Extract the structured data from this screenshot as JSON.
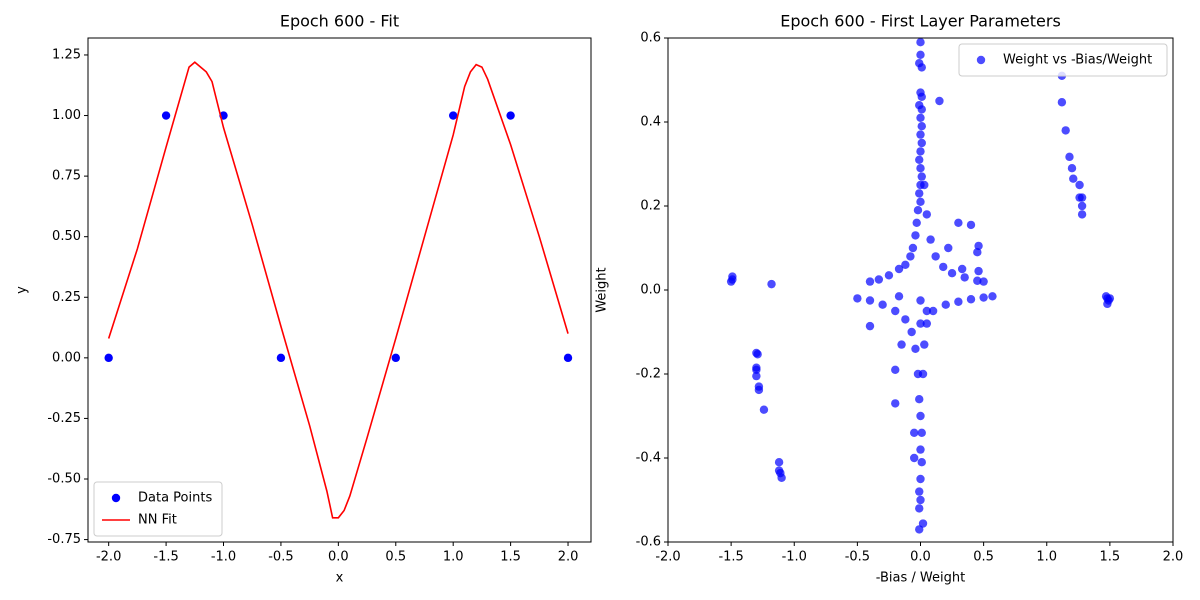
{
  "chart_data": [
    {
      "type": "line",
      "title": "Epoch 600 - Fit",
      "x_label": "x",
      "y_label": "y",
      "xlim": [
        -2.18,
        2.2
      ],
      "ylim": [
        -0.76,
        1.32
      ],
      "xticks": [
        {
          "value": -2,
          "label": "-2.0"
        },
        {
          "value": -1.5,
          "label": "-1.5"
        },
        {
          "value": -1,
          "label": "-1.0"
        },
        {
          "value": -0.5,
          "label": "-0.5"
        },
        {
          "value": 0,
          "label": "0.0"
        },
        0.5,
        {
          "value": 1,
          "label": "1.0"
        },
        1.5,
        {
          "value": 2,
          "label": "2.0"
        }
      ],
      "yticks": [
        -0.75,
        {
          "value": -0.5,
          "label": "-0.50"
        },
        -0.25,
        {
          "value": 0,
          "label": "0.00"
        },
        0.25,
        {
          "value": 0.5,
          "label": "0.50"
        },
        0.75,
        {
          "value": 1,
          "label": "1.00"
        },
        1.25
      ],
      "legend": "lower left",
      "series": [
        {
          "name": "Data Points",
          "style": "points",
          "color": "#0000ff",
          "x": [
            -2,
            -1.5,
            -1,
            -0.5,
            0.5,
            1,
            1.5,
            2
          ],
          "values": [
            0,
            1,
            1,
            0,
            0,
            1,
            1,
            0
          ]
        },
        {
          "name": "NN Fit",
          "style": "line",
          "color": "#ff0000",
          "x": [
            -2,
            -1.75,
            -1.5,
            -1.3,
            -1.25,
            -1.15,
            -1.1,
            -1,
            -0.75,
            -0.5,
            -0.25,
            -0.1,
            -0.05,
            0,
            0.05,
            0.1,
            0.25,
            0.5,
            0.75,
            1,
            1.1,
            1.15,
            1.2,
            1.25,
            1.3,
            1.5,
            1.75,
            2
          ],
          "values": [
            0.08,
            0.45,
            0.87,
            1.2,
            1.22,
            1.18,
            1.14,
            0.95,
            0.55,
            0.13,
            -0.28,
            -0.55,
            -0.66,
            -0.66,
            -0.63,
            -0.57,
            -0.33,
            0.08,
            0.5,
            0.92,
            1.12,
            1.18,
            1.21,
            1.2,
            1.15,
            0.88,
            0.5,
            0.1
          ]
        }
      ]
    },
    {
      "type": "scatter",
      "title": "Epoch 600 - First Layer Parameters",
      "x_label": "-Bias / Weight",
      "y_label": "Weight",
      "xlim": [
        -2,
        2
      ],
      "ylim": [
        -0.6,
        0.6
      ],
      "xticks": [
        {
          "value": -2,
          "label": "-2.0"
        },
        {
          "value": -1.5,
          "label": "-1.5"
        },
        {
          "value": -1,
          "label": "-1.0"
        },
        {
          "value": -0.5,
          "label": "-0.5"
        },
        {
          "value": 0,
          "label": "0.0"
        },
        0.5,
        {
          "value": 1,
          "label": "1.0"
        },
        1.5,
        {
          "value": 2,
          "label": "2.0"
        }
      ],
      "yticks": [
        -0.6,
        -0.4,
        -0.2,
        {
          "value": 0,
          "label": "0.0"
        },
        0.2,
        0.4,
        0.6
      ],
      "legend": "upper right",
      "series": [
        {
          "name": "Weight vs -Bias/Weight",
          "style": "points",
          "color": "#0000ff",
          "alpha": 0.7,
          "x": [
            0,
            0,
            -0.01,
            0.01,
            0,
            0.01,
            -0.01,
            0.01,
            0,
            0.01,
            0,
            0.01,
            0,
            -0.01,
            0,
            0.01,
            0,
            -0.01,
            0,
            -0.02,
            -0.03,
            -0.04,
            -0.06,
            -0.08,
            -0.12,
            -0.17,
            -0.25,
            -0.33,
            -0.4,
            0.03,
            0.05,
            0.08,
            0.12,
            0.18,
            0.25,
            0.35,
            0.45,
            0.5,
            0.15,
            0.3,
            0.4,
            0.22,
            0.46,
            0.45,
            0.33,
            0.46,
            -0.5,
            -0.4,
            -0.3,
            -0.2,
            -0.12,
            -0.07,
            -0.04,
            -0.02,
            -0.01,
            0,
            0.01,
            0,
            0.01,
            0,
            -0.01,
            0,
            -0.01,
            -0.01,
            0.02,
            -0.2,
            -0.2,
            -0.4,
            -0.15,
            -0.05,
            -0.05,
            0.02,
            0.03,
            0.05,
            0.1,
            0.2,
            0.3,
            0.4,
            0.5,
            0.57,
            0.05,
            0,
            0,
            -0.17,
            -1.5,
            -1.49,
            -1.49,
            -1.18,
            -1.3,
            -1.29,
            -1.3,
            -1.3,
            -1.3,
            -1.28,
            -1.28,
            -1.24,
            -1.12,
            -1.12,
            -1.11,
            -1.1,
            1.12,
            1.12,
            1.15,
            1.18,
            1.2,
            1.21,
            1.26,
            1.26,
            1.28,
            1.28,
            1.28,
            1.47,
            1.48,
            1.49,
            1.5,
            1.48
          ],
          "values": [
            0.59,
            0.56,
            0.54,
            0.53,
            0.47,
            0.46,
            0.44,
            0.43,
            0.41,
            0.39,
            0.37,
            0.35,
            0.33,
            0.31,
            0.29,
            0.27,
            0.25,
            0.23,
            0.21,
            0.19,
            0.16,
            0.13,
            0.1,
            0.08,
            0.06,
            0.05,
            0.035,
            0.025,
            0.02,
            0.25,
            0.18,
            0.12,
            0.08,
            0.055,
            0.04,
            0.03,
            0.022,
            0.02,
            0.45,
            0.16,
            0.155,
            0.1,
            0.105,
            0.09,
            0.05,
            0.045,
            -0.02,
            -0.025,
            -0.035,
            -0.05,
            -0.07,
            -0.1,
            -0.14,
            -0.2,
            -0.26,
            -0.3,
            -0.34,
            -0.38,
            -0.41,
            -0.45,
            -0.48,
            -0.5,
            -0.52,
            -0.57,
            -0.556,
            -0.19,
            -0.27,
            -0.086,
            -0.13,
            -0.34,
            -0.4,
            -0.2,
            -0.13,
            -0.08,
            -0.05,
            -0.035,
            -0.028,
            -0.022,
            -0.018,
            -0.015,
            -0.05,
            -0.08,
            -0.025,
            -0.015,
            0.02,
            0.025,
            0.032,
            0.014,
            -0.15,
            -0.153,
            -0.185,
            -0.19,
            -0.205,
            -0.23,
            -0.238,
            -0.285,
            -0.41,
            -0.43,
            -0.436,
            -0.447,
            0.51,
            0.447,
            0.38,
            0.317,
            0.29,
            0.265,
            0.25,
            0.22,
            0.22,
            0.2,
            0.18,
            -0.015,
            -0.02,
            -0.025,
            -0.02,
            -0.033
          ]
        }
      ]
    }
  ]
}
